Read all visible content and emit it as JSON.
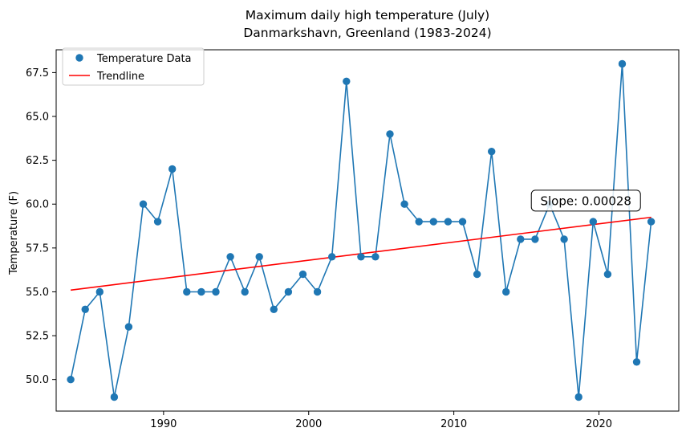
{
  "chart_data": {
    "type": "line",
    "title": "Maximum daily high temperature (July)",
    "subtitle": "Danmarkshavn, Greenland (1983-2024)",
    "xlabel": "",
    "ylabel": "Temperature (F)",
    "xlim": [
      1982.6,
      2025.5
    ],
    "ylim": [
      48.2,
      68.8
    ],
    "xticks": [
      1990,
      2000,
      2010,
      2020
    ],
    "yticks": [
      50.0,
      52.5,
      55.0,
      57.5,
      60.0,
      62.5,
      65.0,
      67.5
    ],
    "grid": false,
    "legend_position": "top-left",
    "series": [
      {
        "name": "Temperature Data",
        "marker": "circle",
        "color": "#1f77b4",
        "x": [
          1983.6,
          1984.6,
          1985.6,
          1986.6,
          1987.6,
          1988.6,
          1989.6,
          1990.6,
          1991.6,
          1992.6,
          1993.6,
          1994.6,
          1995.6,
          1996.6,
          1997.6,
          1998.6,
          1999.6,
          2000.6,
          2001.6,
          2002.6,
          2003.6,
          2004.6,
          2005.6,
          2006.6,
          2007.6,
          2008.6,
          2009.6,
          2010.6,
          2011.6,
          2012.6,
          2013.6,
          2014.6,
          2015.6,
          2016.6,
          2017.6,
          2018.6,
          2019.6,
          2020.6,
          2021.6,
          2022.6,
          2023.6
        ],
        "values": [
          50,
          54,
          55,
          49,
          53,
          60,
          59,
          62,
          55,
          55,
          55,
          57,
          55,
          57,
          54,
          55,
          56,
          55,
          57,
          67,
          57,
          57,
          64,
          60,
          59,
          59,
          59,
          59,
          56,
          63,
          55,
          58,
          58,
          60,
          58,
          49,
          59,
          56,
          68,
          51,
          59
        ]
      },
      {
        "name": "Trendline",
        "color": "#ff0000",
        "x": [
          1983.6,
          2023.6
        ],
        "values": [
          55.1,
          59.25
        ]
      }
    ],
    "annotations": [
      {
        "text": "Slope: 0.00028",
        "x": 2019.1,
        "y": 60.2
      }
    ]
  }
}
